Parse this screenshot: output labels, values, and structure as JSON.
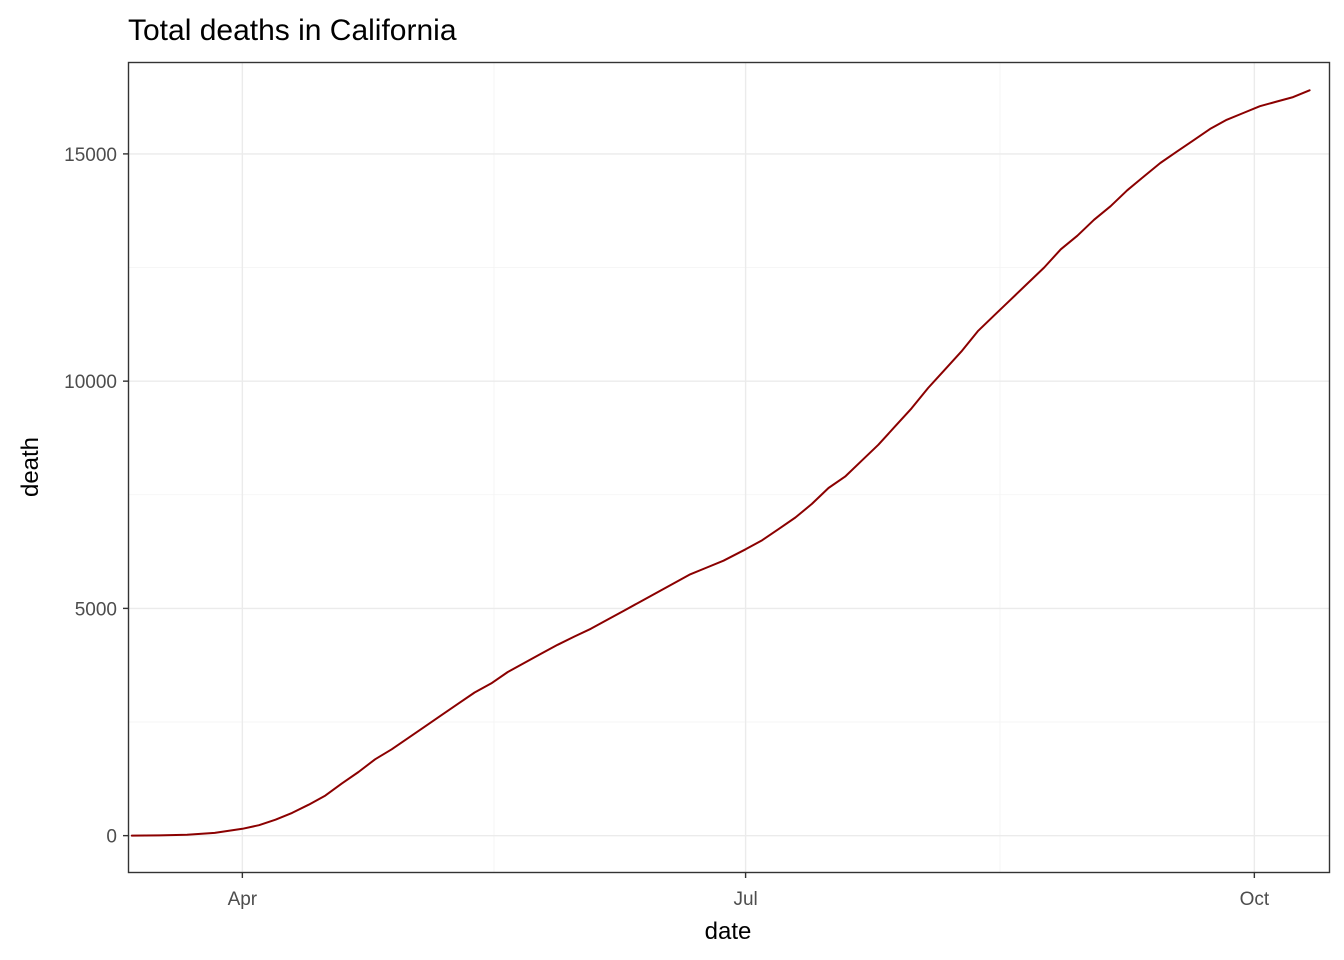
{
  "chart_data": {
    "type": "line",
    "title": "Total deaths in California",
    "xlabel": "date",
    "ylabel": "death",
    "x_range_days": [
      -20.5,
      196.5
    ],
    "x_origin_date": "2020-04-01",
    "ylim": [
      -800,
      17000
    ],
    "x_ticks": [
      {
        "day": 0,
        "label": "Apr"
      },
      {
        "day": 91,
        "label": "Jul"
      },
      {
        "day": 183,
        "label": "Oct"
      }
    ],
    "x_minor_ticks_days": [
      45.5,
      137
    ],
    "y_ticks": [
      {
        "value": 0,
        "label": "0"
      },
      {
        "value": 5000,
        "label": "5000"
      },
      {
        "value": 10000,
        "label": "10000"
      },
      {
        "value": 15000,
        "label": "15000"
      }
    ],
    "y_minor_ticks": [
      2500,
      7500,
      12500
    ],
    "grid": true,
    "line_color": "#8b0000",
    "series": [
      {
        "name": "death",
        "x_days": [
          -20,
          -15,
          -10,
          -5,
          0,
          3,
          6,
          9,
          12,
          15,
          18,
          21,
          24,
          27,
          30,
          33,
          36,
          39,
          42,
          45,
          48,
          51,
          54,
          57,
          60,
          63,
          66,
          69,
          72,
          75,
          78,
          81,
          84,
          87,
          91,
          94,
          97,
          100,
          103,
          106,
          109,
          112,
          115,
          118,
          121,
          124,
          127,
          130,
          133,
          136,
          139,
          142,
          145,
          148,
          151,
          154,
          157,
          160,
          163,
          166,
          169,
          172,
          175,
          178,
          181,
          184,
          187,
          190,
          193
        ],
        "values": [
          0,
          5,
          20,
          60,
          150,
          230,
          350,
          500,
          680,
          880,
          1150,
          1400,
          1680,
          1900,
          2150,
          2400,
          2650,
          2900,
          3150,
          3350,
          3600,
          3800,
          4000,
          4200,
          4380,
          4550,
          4750,
          4950,
          5150,
          5350,
          5550,
          5750,
          5900,
          6050,
          6300,
          6500,
          6750,
          7000,
          7300,
          7650,
          7900,
          8250,
          8600,
          9000,
          9400,
          9850,
          10250,
          10650,
          11100,
          11450,
          11800,
          12150,
          12500,
          12900,
          13200,
          13550,
          13850,
          14200,
          14500,
          14800,
          15050,
          15300,
          15550,
          15750,
          15900,
          16050,
          16150,
          16250,
          16400
        ]
      }
    ]
  }
}
